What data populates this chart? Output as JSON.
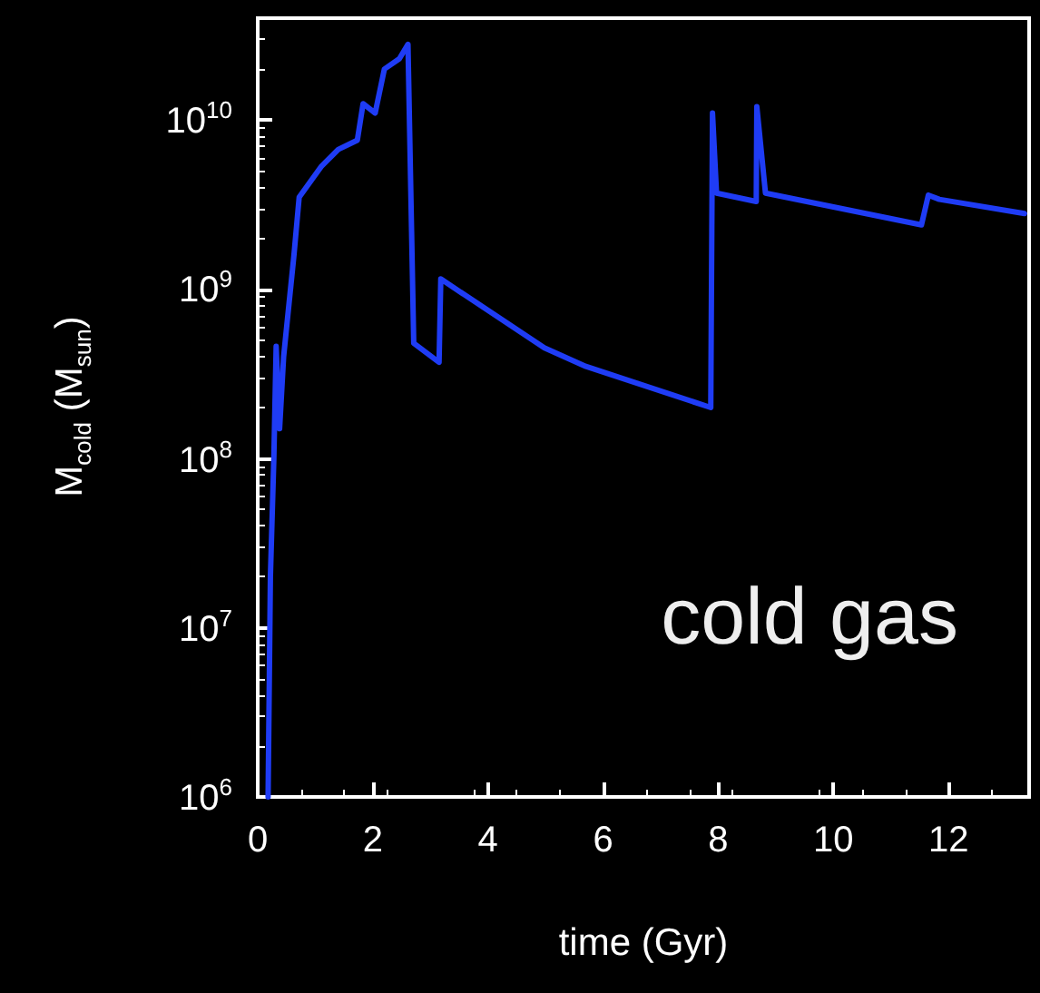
{
  "chart_data": {
    "type": "line",
    "xlabel": "time (Gyr)",
    "ylabel": "M$_{cold}$ (M$_{sun}$)",
    "x": [
      0.18,
      0.22,
      0.28,
      0.32,
      0.38,
      0.45,
      0.63,
      0.72,
      1.1,
      1.4,
      1.73,
      1.83,
      2.04,
      2.2,
      2.46,
      2.61,
      2.71,
      3.15,
      3.18,
      4.98,
      5.7,
      7.87,
      7.9,
      7.97,
      8.66,
      8.67,
      8.82,
      11.53,
      11.65,
      11.84,
      13.32
    ],
    "series": [
      {
        "color": "#1f3cf5",
        "values": [
          1000000.0,
          20000000.0,
          100000000.0,
          460000000.0,
          150000000.0,
          400000000.0,
          1600000000.0,
          3500000000.0,
          5300000000.0,
          6700000000.0,
          7600000000.0,
          12500000000.0,
          11000000000.0,
          20000000000.0,
          23000000000.0,
          28000000000.0,
          480000000.0,
          370000000.0,
          1150000000.0,
          450000000.0,
          350000000.0,
          200000000.0,
          11000000000.0,
          3700000000.0,
          3300000000.0,
          12000000000.0,
          3700000000.0,
          2400000000.0,
          3600000000.0,
          3400000000.0,
          2800000000.0
        ]
      }
    ],
    "xlim": [
      0,
      13.4
    ],
    "xticks": [
      0,
      2,
      4,
      6,
      8,
      10,
      12
    ],
    "ylim": [
      1000000.0,
      40000000000.0
    ],
    "log": "y",
    "yticks": [
      {
        "value": 1000000.0,
        "label": "10$^{6}$"
      },
      {
        "value": 10000000.0,
        "label": "10$^{7}$"
      },
      {
        "value": 100000000.0,
        "label": "10$^{8}$"
      },
      {
        "value": 1000000000.0,
        "label": "10$^{9}$"
      },
      {
        "value": 10000000000.0,
        "label": "10$^{10}$"
      }
    ],
    "annotations": [
      "cold gas"
    ],
    "grid": false,
    "marker": "none",
    "line_style": "solid"
  }
}
